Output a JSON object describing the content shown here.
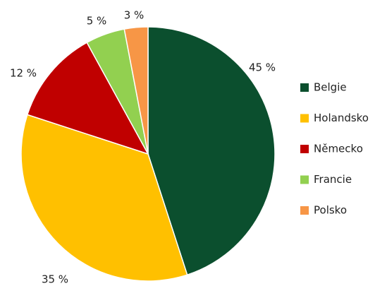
{
  "chart_data": {
    "type": "pie",
    "categories": [
      "Belgie",
      "Holandsko",
      "Německo",
      "Francie",
      "Polsko"
    ],
    "values": [
      45,
      35,
      12,
      5,
      3
    ],
    "value_labels": [
      "45 %",
      "35 %",
      "12 %",
      "5 %",
      "3 %"
    ],
    "colors": [
      "#0b4f2e",
      "#ffc000",
      "#c00000",
      "#92d050",
      "#f79646"
    ],
    "legend": "right"
  }
}
